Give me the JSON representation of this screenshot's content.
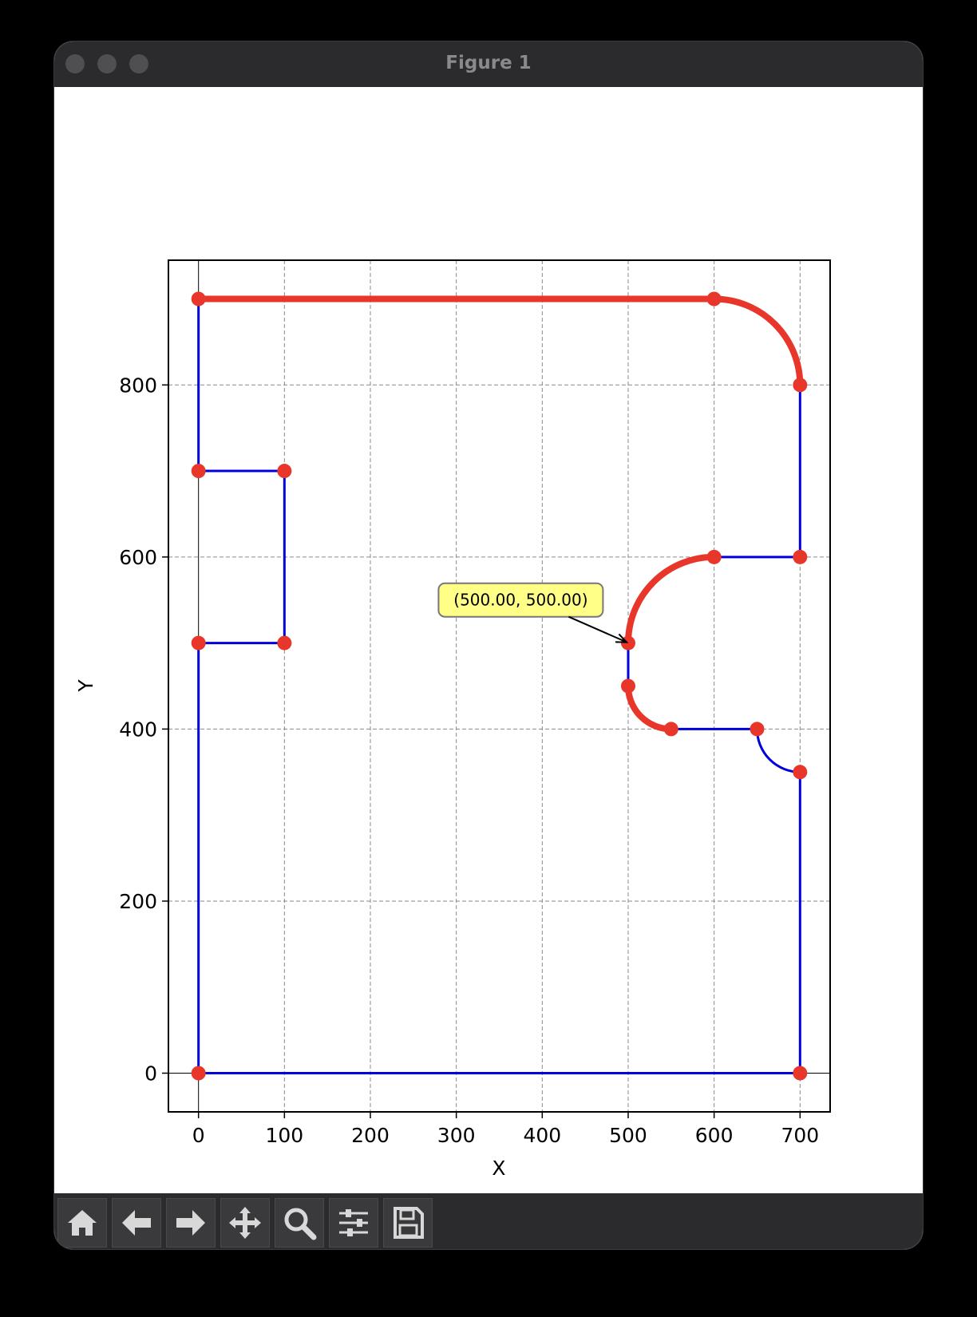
{
  "window": {
    "title": "Figure 1"
  },
  "toolbar": {
    "buttons": [
      {
        "icon": "home-icon"
      },
      {
        "icon": "back-arrow-icon"
      },
      {
        "icon": "forward-arrow-icon"
      },
      {
        "icon": "pan-icon"
      },
      {
        "icon": "zoom-icon"
      },
      {
        "icon": "configure-subplots-icon"
      },
      {
        "icon": "save-icon"
      }
    ]
  },
  "colors": {
    "thin_segment": "#0000dd",
    "thick_segment": "#e8362a",
    "vertex": "#e8362a",
    "annotation_fill": "#ffff88"
  },
  "chart_data": {
    "type": "line",
    "xlabel": "X",
    "ylabel": "Y",
    "xlim": [
      -35,
      735
    ],
    "ylim": [
      -45,
      945
    ],
    "xticks": [
      "0",
      "100",
      "200",
      "300",
      "400",
      "500",
      "600",
      "700"
    ],
    "yticks": [
      "0",
      "200",
      "400",
      "600",
      "800"
    ],
    "grid": true,
    "segments": [
      {
        "style": "thin",
        "points": [
          [
            0,
            0
          ],
          [
            700,
            0
          ]
        ]
      },
      {
        "style": "thin",
        "points": [
          [
            700,
            0
          ],
          [
            700,
            350
          ]
        ]
      },
      {
        "style": "thin",
        "arc": {
          "center": [
            700,
            400
          ],
          "radius": 50,
          "from": [
            700,
            350
          ],
          "to": [
            650,
            400
          ]
        }
      },
      {
        "style": "thin",
        "points": [
          [
            650,
            400
          ],
          [
            550,
            400
          ]
        ]
      },
      {
        "style": "thick",
        "arc": {
          "center": [
            550,
            450
          ],
          "radius": 50,
          "from": [
            550,
            400
          ],
          "to": [
            500,
            450
          ]
        }
      },
      {
        "style": "thin",
        "points": [
          [
            500,
            450
          ],
          [
            500,
            500
          ]
        ]
      },
      {
        "style": "thick",
        "arc": {
          "center": [
            600,
            500
          ],
          "radius": 100,
          "from": [
            500,
            500
          ],
          "to": [
            600,
            600
          ]
        }
      },
      {
        "style": "thin",
        "points": [
          [
            600,
            600
          ],
          [
            700,
            600
          ]
        ]
      },
      {
        "style": "thin",
        "points": [
          [
            700,
            600
          ],
          [
            700,
            800
          ]
        ]
      },
      {
        "style": "thick",
        "arc": {
          "center": [
            600,
            800
          ],
          "radius": 100,
          "from": [
            700,
            800
          ],
          "to": [
            600,
            900
          ]
        }
      },
      {
        "style": "thick",
        "points": [
          [
            600,
            900
          ],
          [
            0,
            900
          ]
        ]
      },
      {
        "style": "thin",
        "points": [
          [
            0,
            900
          ],
          [
            0,
            700
          ]
        ]
      },
      {
        "style": "thin",
        "points": [
          [
            0,
            700
          ],
          [
            100,
            700
          ]
        ]
      },
      {
        "style": "thin",
        "points": [
          [
            100,
            700
          ],
          [
            100,
            500
          ]
        ]
      },
      {
        "style": "thin",
        "points": [
          [
            100,
            500
          ],
          [
            0,
            500
          ]
        ]
      },
      {
        "style": "thin",
        "points": [
          [
            0,
            500
          ],
          [
            0,
            0
          ]
        ]
      }
    ],
    "vertices": [
      [
        0,
        0
      ],
      [
        700,
        0
      ],
      [
        700,
        350
      ],
      [
        650,
        400
      ],
      [
        550,
        400
      ],
      [
        500,
        450
      ],
      [
        500,
        500
      ],
      [
        600,
        600
      ],
      [
        700,
        600
      ],
      [
        700,
        800
      ],
      [
        600,
        900
      ],
      [
        0,
        900
      ],
      [
        0,
        700
      ],
      [
        100,
        700
      ],
      [
        100,
        500
      ],
      [
        0,
        500
      ]
    ],
    "annotation": {
      "text": "(500.00, 500.00)",
      "point": [
        500,
        500
      ],
      "text_at": [
        375,
        550
      ]
    }
  }
}
